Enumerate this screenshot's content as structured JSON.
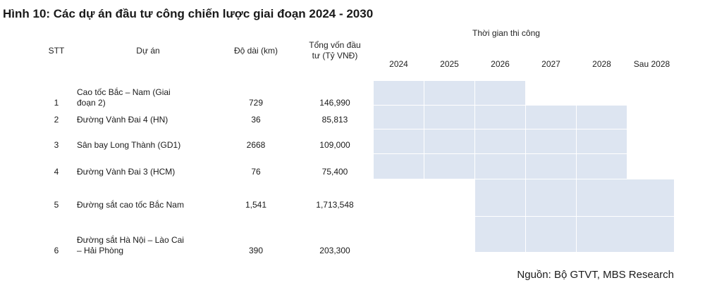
{
  "title": "Hình 10: Các dự án đầu tư công chiến lược giai đoạn 2024 - 2030",
  "headers": {
    "stt": "STT",
    "project": "Dự án",
    "length": "Độ dài (km)",
    "capital_line1": "Tổng vốn đầu",
    "capital_line2": "tư (Tỷ VNĐ)",
    "schedule": "Thời gian thi công"
  },
  "years": [
    "2024",
    "2025",
    "2026",
    "2027",
    "2028",
    "Sau 2028"
  ],
  "rows": [
    {
      "stt": "1",
      "name_line1": "Cao tốc Bắc – Nam (Giai",
      "name_line2": "đoạn 2)",
      "length": "729",
      "capital": "146,990",
      "active": [
        true,
        true,
        true,
        false,
        false,
        false
      ]
    },
    {
      "stt": "2",
      "name_line1": "Đường Vành Đai 4 (HN)",
      "name_line2": "",
      "length": "36",
      "capital": "85,813",
      "active": [
        true,
        true,
        true,
        true,
        true,
        false
      ]
    },
    {
      "stt": "3",
      "name_line1": "Sân bay Long Thành (GD1)",
      "name_line2": "",
      "length": "2668",
      "capital": "109,000",
      "active": [
        true,
        true,
        true,
        true,
        true,
        false
      ]
    },
    {
      "stt": "4",
      "name_line1": "Đường Vành Đai 3 (HCM)",
      "name_line2": "",
      "length": "76",
      "capital": "75,400",
      "active": [
        true,
        true,
        true,
        true,
        true,
        false
      ]
    },
    {
      "stt": "5",
      "name_line1": "Đường sắt cao tốc Bắc Nam",
      "name_line2": "",
      "length": "1,541",
      "capital": "1,713,548",
      "active": [
        false,
        false,
        true,
        true,
        true,
        true
      ]
    },
    {
      "stt": "6",
      "name_line1": "Đường sắt Hà Nội – Lào Cai",
      "name_line2": "– Hải Phòng",
      "length": "390",
      "capital": "203,300",
      "active": [
        false,
        false,
        true,
        true,
        true,
        true
      ]
    }
  ],
  "source": "Nguồn: Bộ GTVT, MBS Research",
  "colors": {
    "bar": "#dde5f1"
  }
}
